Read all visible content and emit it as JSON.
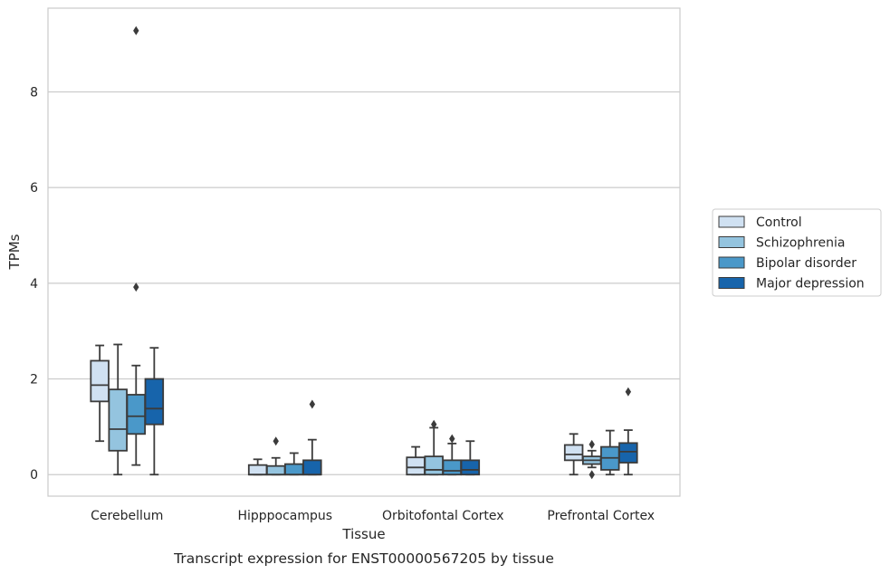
{
  "chart_data": {
    "type": "box",
    "caption": "Transcript expression for ENST00000567205 by tissue",
    "xlabel": "Tissue",
    "ylabel": "TPMs",
    "ylim": [
      -0.45,
      9.75
    ],
    "yticks": [
      "0",
      "2",
      "4",
      "6",
      "8"
    ],
    "grid": "horizontal",
    "legend_position": "right",
    "categories": [
      "Cerebellum",
      "Hipppocampus",
      "Orbitofontal Cortex",
      "Prefrontal Cortex"
    ],
    "series": [
      {
        "name": "Control",
        "color": "#d0e1f2",
        "boxes": [
          {
            "whislo": 0.7,
            "q1": 1.53,
            "med": 1.87,
            "q3": 2.38,
            "whishi": 2.7,
            "fliers": []
          },
          {
            "whislo": 0.0,
            "q1": 0.0,
            "med": 0.0,
            "q3": 0.2,
            "whishi": 0.32,
            "fliers": []
          },
          {
            "whislo": 0.0,
            "q1": 0.0,
            "med": 0.15,
            "q3": 0.36,
            "whishi": 0.58,
            "fliers": []
          },
          {
            "whislo": 0.0,
            "q1": 0.3,
            "med": 0.42,
            "q3": 0.62,
            "whishi": 0.85,
            "fliers": []
          }
        ]
      },
      {
        "name": "Schizophrenia",
        "color": "#94c4df",
        "boxes": [
          {
            "whislo": 0.0,
            "q1": 0.5,
            "med": 0.95,
            "q3": 1.78,
            "whishi": 2.72,
            "fliers": []
          },
          {
            "whislo": 0.0,
            "q1": 0.0,
            "med": 0.0,
            "q3": 0.18,
            "whishi": 0.35,
            "fliers": [
              0.7
            ]
          },
          {
            "whislo": 0.0,
            "q1": 0.0,
            "med": 0.1,
            "q3": 0.38,
            "whishi": 0.98,
            "fliers": [
              1.05
            ]
          },
          {
            "whislo": 0.15,
            "q1": 0.22,
            "med": 0.3,
            "q3": 0.38,
            "whishi": 0.5,
            "fliers": [
              0.0,
              0.63
            ]
          }
        ]
      },
      {
        "name": "Bipolar disorder",
        "color": "#4a98c9",
        "boxes": [
          {
            "whislo": 0.2,
            "q1": 0.85,
            "med": 1.22,
            "q3": 1.67,
            "whishi": 2.28,
            "fliers": [
              3.92,
              9.28
            ]
          },
          {
            "whislo": 0.0,
            "q1": 0.0,
            "med": 0.0,
            "q3": 0.22,
            "whishi": 0.45,
            "fliers": []
          },
          {
            "whislo": 0.0,
            "q1": 0.0,
            "med": 0.08,
            "q3": 0.3,
            "whishi": 0.65,
            "fliers": [
              0.75
            ]
          },
          {
            "whislo": 0.0,
            "q1": 0.1,
            "med": 0.35,
            "q3": 0.58,
            "whishi": 0.92,
            "fliers": []
          }
        ]
      },
      {
        "name": "Major depression",
        "color": "#1764ab",
        "boxes": [
          {
            "whislo": 0.0,
            "q1": 1.05,
            "med": 1.38,
            "q3": 2.0,
            "whishi": 2.65,
            "fliers": []
          },
          {
            "whislo": 0.0,
            "q1": 0.0,
            "med": 0.0,
            "q3": 0.3,
            "whishi": 0.73,
            "fliers": [
              1.47
            ]
          },
          {
            "whislo": 0.0,
            "q1": 0.0,
            "med": 0.1,
            "q3": 0.3,
            "whishi": 0.7,
            "fliers": []
          },
          {
            "whislo": 0.0,
            "q1": 0.25,
            "med": 0.48,
            "q3": 0.66,
            "whishi": 0.93,
            "fliers": [
              1.73
            ]
          }
        ]
      }
    ]
  }
}
